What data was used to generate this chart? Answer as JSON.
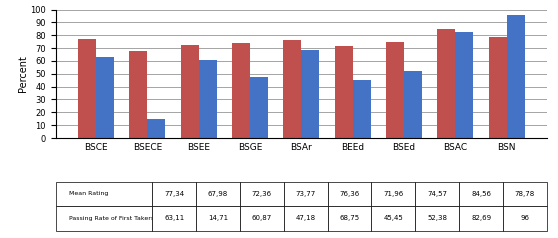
{
  "categories": [
    "BSCE",
    "BSECE",
    "BSEE",
    "BSGE",
    "BSAr",
    "BEEd",
    "BSEd",
    "BSAC",
    "BSN"
  ],
  "mean_rating": [
    77.34,
    67.98,
    72.36,
    73.77,
    76.36,
    71.96,
    74.57,
    84.56,
    78.78
  ],
  "passing_rate": [
    63.11,
    14.71,
    60.87,
    47.18,
    68.75,
    45.45,
    52.38,
    82.69,
    96
  ],
  "mean_color": "#C0504D",
  "passing_color": "#4472C4",
  "ylabel": "Percent",
  "ylim": [
    0,
    100
  ],
  "yticks": [
    0,
    10,
    20,
    30,
    40,
    50,
    60,
    70,
    80,
    90,
    100
  ],
  "legend_mean": "Mean Rating",
  "legend_passing": "Passing Rate of First Takers",
  "bar_width": 0.35,
  "table_rows": {
    "Mean Rating": [
      "77,34",
      "67,98",
      "72,36",
      "73,77",
      "76,36",
      "71,96",
      "74,57",
      "84,56",
      "78,78"
    ],
    "Passing Rate of First Takers": [
      "63,11",
      "14,71",
      "60,87",
      "47,18",
      "68,75",
      "45,45",
      "52,38",
      "82,69",
      "96"
    ]
  }
}
